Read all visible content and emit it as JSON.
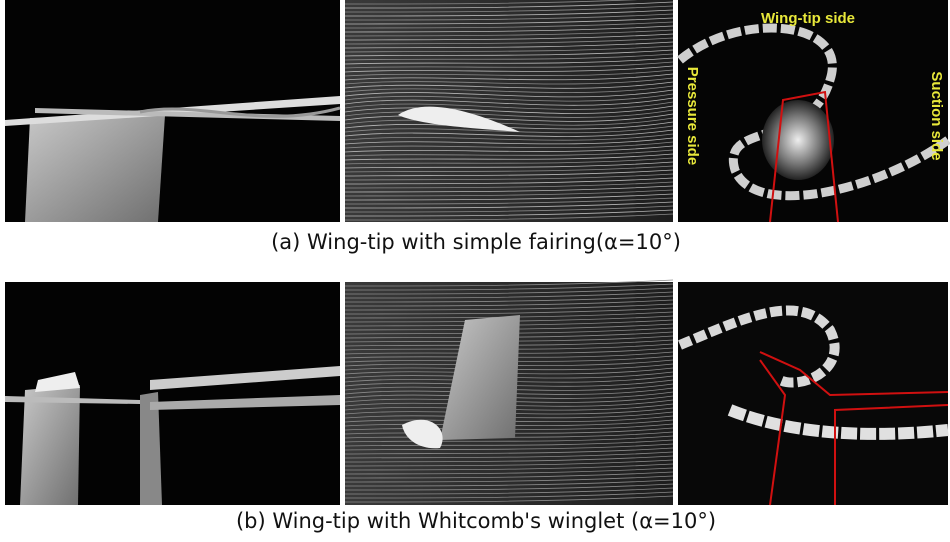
{
  "panels": [
    {
      "caption": "(a) Wing-tip with simple fairing(α=10°)",
      "labels": {
        "top": "Wing-tip side",
        "left": "Pressure side",
        "right": "Suction side"
      }
    },
    {
      "caption": "(b) Wing-tip with Whitcomb's winglet (α=10°)"
    }
  ]
}
